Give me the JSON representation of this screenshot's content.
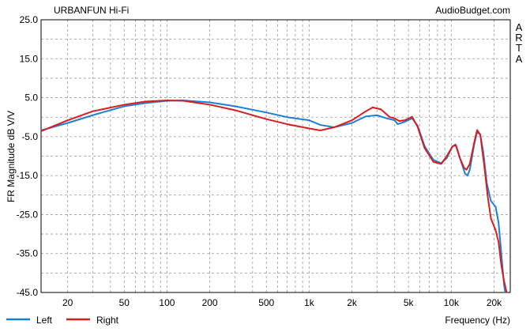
{
  "chart_data": {
    "type": "line",
    "title": "URBANFUN Hi-Fi",
    "source_label": "AudioBudget.com",
    "side_label": [
      "A",
      "R",
      "T",
      "A"
    ],
    "xlabel": "Frequency (Hz)",
    "ylabel": "FR Magnitude dB V/V",
    "xscale": "log",
    "xlim": [
      13,
      26000
    ],
    "ylim": [
      -45,
      25
    ],
    "grid": true,
    "legend_position": "bottom-left",
    "x_ticks": [
      {
        "value": 20,
        "label": "20"
      },
      {
        "value": 50,
        "label": "50"
      },
      {
        "value": 100,
        "label": "100"
      },
      {
        "value": 200,
        "label": "200"
      },
      {
        "value": 500,
        "label": "500"
      },
      {
        "value": 1000,
        "label": "1k"
      },
      {
        "value": 2000,
        "label": "2k"
      },
      {
        "value": 5000,
        "label": "5k"
      },
      {
        "value": 10000,
        "label": "10k"
      },
      {
        "value": 20000,
        "label": "20k"
      }
    ],
    "y_ticks": [
      {
        "value": 25,
        "label": "25.0"
      },
      {
        "value": 15,
        "label": "15.0"
      },
      {
        "value": 5,
        "label": "5.0"
      },
      {
        "value": -5,
        "label": "-5.0"
      },
      {
        "value": -15,
        "label": "-15.0"
      },
      {
        "value": -25,
        "label": "-25.0"
      },
      {
        "value": -35,
        "label": "-35.0"
      },
      {
        "value": -45,
        "label": "-45.0"
      }
    ],
    "series": [
      {
        "name": "Left",
        "color": "#1e7fd8",
        "points": [
          [
            13,
            -3.4
          ],
          [
            20,
            -1.5
          ],
          [
            30,
            0.5
          ],
          [
            50,
            2.8
          ],
          [
            70,
            3.6
          ],
          [
            100,
            4.2
          ],
          [
            130,
            4.3
          ],
          [
            200,
            3.8
          ],
          [
            300,
            2.8
          ],
          [
            500,
            1.2
          ],
          [
            700,
            0
          ],
          [
            1000,
            -0.8
          ],
          [
            1200,
            -2
          ],
          [
            1500,
            -2.6
          ],
          [
            2000,
            -1.5
          ],
          [
            2500,
            0.2
          ],
          [
            3000,
            0.5
          ],
          [
            3500,
            -0.3
          ],
          [
            4000,
            -0.8
          ],
          [
            4200,
            -1.8
          ],
          [
            4700,
            -1.2
          ],
          [
            5300,
            -0.3
          ],
          [
            5800,
            -2.2
          ],
          [
            6500,
            -7.5
          ],
          [
            7500,
            -11
          ],
          [
            8500,
            -11.8
          ],
          [
            9300,
            -10.5
          ],
          [
            10200,
            -7.5
          ],
          [
            10700,
            -7
          ],
          [
            11500,
            -10.5
          ],
          [
            12500,
            -14.5
          ],
          [
            13000,
            -15
          ],
          [
            13500,
            -13.5
          ],
          [
            14500,
            -7
          ],
          [
            15200,
            -3.8
          ],
          [
            16000,
            -4.5
          ],
          [
            16800,
            -9
          ],
          [
            17800,
            -17
          ],
          [
            19000,
            -21.5
          ],
          [
            20500,
            -23
          ],
          [
            21500,
            -27
          ],
          [
            22500,
            -35
          ],
          [
            23500,
            -43
          ],
          [
            24000,
            -45
          ]
        ]
      },
      {
        "name": "Right",
        "color": "#d81e1e",
        "points": [
          [
            13,
            -3.6
          ],
          [
            20,
            -0.8
          ],
          [
            30,
            1.5
          ],
          [
            50,
            3.2
          ],
          [
            70,
            4.0
          ],
          [
            100,
            4.3
          ],
          [
            130,
            4.2
          ],
          [
            200,
            3.2
          ],
          [
            300,
            1.8
          ],
          [
            500,
            -0.5
          ],
          [
            700,
            -1.8
          ],
          [
            1000,
            -2.9
          ],
          [
            1200,
            -3.4
          ],
          [
            1500,
            -2.6
          ],
          [
            2000,
            -0.8
          ],
          [
            2500,
            1.5
          ],
          [
            2800,
            2.5
          ],
          [
            3200,
            2
          ],
          [
            3700,
            0
          ],
          [
            4000,
            -0.3
          ],
          [
            4300,
            -1
          ],
          [
            4700,
            -0.8
          ],
          [
            5300,
            0.1
          ],
          [
            5800,
            -2.5
          ],
          [
            6500,
            -8
          ],
          [
            7500,
            -11.5
          ],
          [
            8500,
            -12
          ],
          [
            9300,
            -10
          ],
          [
            10200,
            -7.5
          ],
          [
            10800,
            -7.2
          ],
          [
            11500,
            -10.5
          ],
          [
            12300,
            -13
          ],
          [
            12800,
            -13.5
          ],
          [
            13500,
            -12
          ],
          [
            14500,
            -6.5
          ],
          [
            15200,
            -3.3
          ],
          [
            16000,
            -4.5
          ],
          [
            17000,
            -12
          ],
          [
            18000,
            -20
          ],
          [
            19000,
            -26
          ],
          [
            20500,
            -29
          ],
          [
            21500,
            -32
          ],
          [
            22500,
            -38
          ],
          [
            23500,
            -42
          ],
          [
            24500,
            -45
          ]
        ]
      }
    ]
  }
}
